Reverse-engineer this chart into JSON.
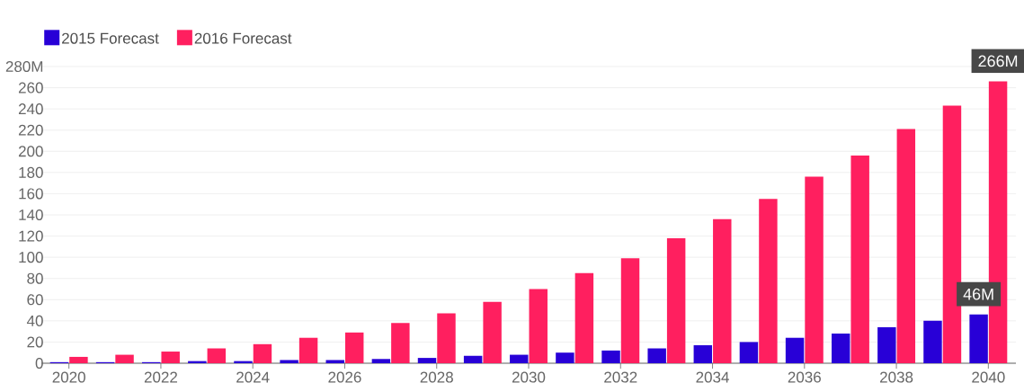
{
  "chart_data": {
    "type": "bar",
    "categories": [
      "2020",
      null,
      "2022",
      null,
      "2024",
      null,
      "2026",
      null,
      "2028",
      null,
      "2030",
      null,
      "2032",
      null,
      "2034",
      null,
      "2036",
      null,
      "2038",
      null,
      "2040"
    ],
    "series": [
      {
        "name": "2015 Forecast",
        "color": "#2800d7",
        "values": [
          1,
          1,
          1,
          2,
          2,
          3,
          3,
          4,
          5,
          7,
          8,
          10,
          12,
          14,
          17,
          20,
          24,
          28,
          34,
          40,
          46
        ],
        "value_labels": [
          null,
          null,
          null,
          null,
          null,
          null,
          null,
          null,
          null,
          null,
          null,
          null,
          null,
          null,
          null,
          null,
          null,
          null,
          null,
          null,
          "46M"
        ]
      },
      {
        "name": "2016 Forecast",
        "color": "#ff1f5f",
        "values": [
          6,
          8,
          11,
          14,
          18,
          24,
          29,
          38,
          47,
          58,
          70,
          85,
          99,
          118,
          136,
          155,
          176,
          196,
          221,
          243,
          266
        ],
        "value_labels": [
          null,
          null,
          null,
          null,
          null,
          null,
          null,
          null,
          null,
          null,
          null,
          null,
          null,
          null,
          null,
          null,
          null,
          null,
          null,
          null,
          "266M"
        ]
      }
    ],
    "ylim": [
      0,
      280
    ],
    "yticks": [
      0,
      20,
      40,
      60,
      80,
      100,
      120,
      140,
      160,
      180,
      200,
      220,
      240,
      260,
      {
        "value": 280,
        "label": "280M"
      }
    ],
    "grid": "y",
    "legend": "top left"
  }
}
